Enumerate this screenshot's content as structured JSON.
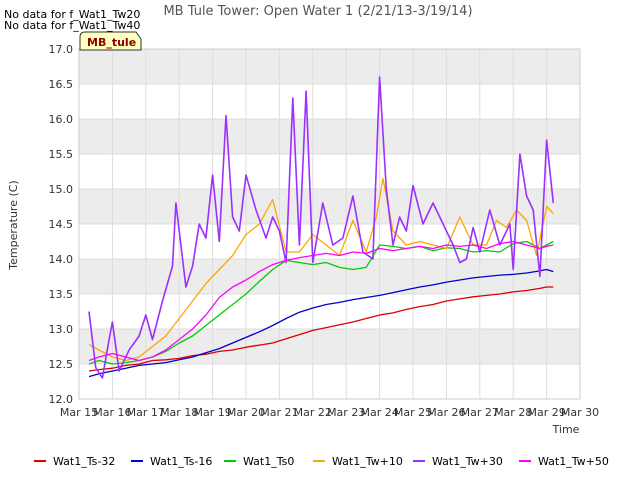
{
  "chart_data": {
    "type": "line",
    "title": "MB Tule Tower: Open Water 1 (2/21/13-3/19/14)",
    "notes": [
      "No data for f_Wat1_Tw20",
      "No data for f_Wat1_Tw40"
    ],
    "badge": "MB_tule",
    "xlabel": "Time",
    "ylabel": "Temperature (C)",
    "ylim": [
      12.0,
      17.0
    ],
    "yticks": [
      "12.0",
      "12.5",
      "13.0",
      "13.5",
      "14.0",
      "14.5",
      "15.0",
      "15.5",
      "16.0",
      "16.5",
      "17.0"
    ],
    "xlim": [
      15,
      30
    ],
    "xticks": [
      "Mar 15",
      "Mar 16",
      "Mar 17",
      "Mar 18",
      "Mar 19",
      "Mar 20",
      "Mar 21",
      "Mar 22",
      "Mar 23",
      "Mar 24",
      "Mar 25",
      "Mar 26",
      "Mar 27",
      "Mar 28",
      "Mar 29",
      "Mar 30"
    ],
    "grid": true,
    "legend_position": "bottom",
    "series": [
      {
        "name": "Wat1_Ts-32",
        "color": "#dd0000",
        "x": [
          15.3,
          15.6,
          16.0,
          16.4,
          16.8,
          17.2,
          17.6,
          18.0,
          18.4,
          18.8,
          19.2,
          19.6,
          20.0,
          20.4,
          20.8,
          21.2,
          21.6,
          22.0,
          22.4,
          22.8,
          23.2,
          23.6,
          24.0,
          24.4,
          24.8,
          25.2,
          25.6,
          26.0,
          26.4,
          26.8,
          27.2,
          27.6,
          28.0,
          28.4,
          28.8,
          29.0,
          29.2
        ],
        "y": [
          12.4,
          12.42,
          12.44,
          12.48,
          12.5,
          12.55,
          12.56,
          12.58,
          12.62,
          12.64,
          12.68,
          12.7,
          12.74,
          12.77,
          12.8,
          12.86,
          12.92,
          12.98,
          13.02,
          13.06,
          13.1,
          13.15,
          13.2,
          13.23,
          13.28,
          13.32,
          13.35,
          13.4,
          13.43,
          13.46,
          13.48,
          13.5,
          13.53,
          13.55,
          13.58,
          13.6,
          13.6
        ]
      },
      {
        "name": "Wat1_Ts-16",
        "color": "#0000cc",
        "x": [
          15.3,
          15.6,
          16.0,
          16.4,
          16.8,
          17.2,
          17.6,
          18.0,
          18.4,
          18.8,
          19.2,
          19.6,
          20.0,
          20.4,
          20.8,
          21.2,
          21.6,
          22.0,
          22.4,
          22.8,
          23.2,
          23.6,
          24.0,
          24.4,
          24.8,
          25.2,
          25.6,
          26.0,
          26.4,
          26.8,
          27.2,
          27.6,
          28.0,
          28.4,
          28.8,
          29.0,
          29.2
        ],
        "y": [
          12.32,
          12.36,
          12.4,
          12.44,
          12.48,
          12.5,
          12.52,
          12.56,
          12.6,
          12.66,
          12.72,
          12.8,
          12.88,
          12.96,
          13.05,
          13.15,
          13.24,
          13.3,
          13.35,
          13.38,
          13.42,
          13.45,
          13.48,
          13.52,
          13.56,
          13.6,
          13.63,
          13.67,
          13.7,
          13.73,
          13.75,
          13.77,
          13.78,
          13.8,
          13.83,
          13.85,
          13.82
        ]
      },
      {
        "name": "Wat1_Ts0",
        "color": "#00cc00",
        "x": [
          15.3,
          15.6,
          16.0,
          16.4,
          16.8,
          17.2,
          17.6,
          18.0,
          18.4,
          18.8,
          19.2,
          19.6,
          20.0,
          20.4,
          20.8,
          21.2,
          21.6,
          22.0,
          22.4,
          22.8,
          23.2,
          23.6,
          24.0,
          24.4,
          24.8,
          25.2,
          25.6,
          26.0,
          26.4,
          26.8,
          27.2,
          27.6,
          28.0,
          28.4,
          28.8,
          29.0,
          29.2
        ],
        "y": [
          12.5,
          12.55,
          12.5,
          12.52,
          12.55,
          12.6,
          12.68,
          12.8,
          12.9,
          13.05,
          13.2,
          13.35,
          13.5,
          13.68,
          13.85,
          13.98,
          13.95,
          13.92,
          13.95,
          13.88,
          13.85,
          13.88,
          14.2,
          14.18,
          14.15,
          14.18,
          14.12,
          14.16,
          14.15,
          14.1,
          14.12,
          14.1,
          14.22,
          14.25,
          14.15,
          14.2,
          14.25
        ]
      },
      {
        "name": "Wat1_Tw+10",
        "color": "#ffa500",
        "x": [
          15.3,
          15.6,
          16.0,
          16.4,
          16.8,
          17.2,
          17.6,
          18.0,
          18.4,
          18.8,
          19.2,
          19.6,
          20.0,
          20.4,
          20.8,
          21.2,
          21.6,
          22.0,
          22.4,
          22.8,
          23.2,
          23.6,
          23.9,
          24.1,
          24.4,
          24.8,
          25.2,
          25.6,
          26.0,
          26.4,
          26.8,
          27.2,
          27.5,
          27.8,
          28.1,
          28.4,
          28.7,
          29.0,
          29.2
        ],
        "y": [
          12.78,
          12.7,
          12.6,
          12.55,
          12.6,
          12.75,
          12.9,
          13.15,
          13.4,
          13.65,
          13.85,
          14.05,
          14.35,
          14.5,
          14.85,
          14.1,
          14.1,
          14.35,
          14.2,
          14.05,
          14.55,
          14.1,
          14.6,
          15.15,
          14.4,
          14.2,
          14.25,
          14.2,
          14.15,
          14.6,
          14.2,
          14.2,
          14.55,
          14.45,
          14.7,
          14.55,
          14.05,
          14.75,
          14.65
        ]
      },
      {
        "name": "Wat1_Tw+30",
        "color": "#9b30ff",
        "x": [
          15.3,
          15.5,
          15.7,
          15.9,
          16.0,
          16.2,
          16.5,
          16.8,
          17.0,
          17.2,
          17.5,
          17.8,
          17.9,
          18.0,
          18.2,
          18.4,
          18.6,
          18.8,
          19.0,
          19.2,
          19.4,
          19.6,
          19.8,
          20.0,
          20.3,
          20.6,
          20.8,
          21.0,
          21.2,
          21.4,
          21.6,
          21.8,
          22.0,
          22.3,
          22.6,
          22.9,
          23.2,
          23.5,
          23.8,
          24.0,
          24.2,
          24.4,
          24.6,
          24.8,
          25.0,
          25.3,
          25.6,
          25.9,
          26.2,
          26.4,
          26.6,
          26.8,
          27.0,
          27.3,
          27.6,
          27.9,
          28.0,
          28.2,
          28.4,
          28.6,
          28.8,
          29.0,
          29.2
        ],
        "y": [
          13.25,
          12.45,
          12.3,
          12.85,
          13.1,
          12.4,
          12.7,
          12.9,
          13.2,
          12.85,
          13.4,
          13.9,
          14.8,
          14.4,
          13.6,
          13.9,
          14.5,
          14.3,
          15.2,
          14.25,
          16.05,
          14.6,
          14.4,
          15.2,
          14.7,
          14.3,
          14.6,
          14.4,
          13.95,
          16.3,
          14.2,
          16.4,
          13.95,
          14.8,
          14.2,
          14.3,
          14.9,
          14.1,
          14.0,
          16.6,
          15.0,
          14.2,
          14.6,
          14.4,
          15.05,
          14.5,
          14.8,
          14.5,
          14.2,
          13.95,
          14.0,
          14.45,
          14.1,
          14.7,
          14.2,
          14.5,
          13.85,
          15.5,
          14.9,
          14.7,
          13.75,
          15.7,
          14.8
        ]
      },
      {
        "name": "Wat1_Tw+50",
        "color": "#ff00ff",
        "x": [
          15.3,
          15.6,
          16.0,
          16.4,
          16.8,
          17.2,
          17.6,
          18.0,
          18.4,
          18.8,
          19.2,
          19.6,
          20.0,
          20.4,
          20.8,
          21.2,
          21.6,
          22.0,
          22.4,
          22.8,
          23.2,
          23.6,
          24.0,
          24.4,
          24.8,
          25.2,
          25.6,
          26.0,
          26.4,
          26.8,
          27.2,
          27.6,
          28.0,
          28.4,
          28.8,
          29.0,
          29.2
        ],
        "y": [
          12.55,
          12.6,
          12.65,
          12.6,
          12.55,
          12.6,
          12.7,
          12.85,
          13.0,
          13.2,
          13.45,
          13.6,
          13.7,
          13.82,
          13.92,
          13.98,
          14.02,
          14.05,
          14.08,
          14.05,
          14.1,
          14.08,
          14.15,
          14.12,
          14.15,
          14.18,
          14.15,
          14.2,
          14.18,
          14.2,
          14.15,
          14.22,
          14.25,
          14.2,
          14.15,
          14.18,
          14.2
        ]
      }
    ]
  }
}
